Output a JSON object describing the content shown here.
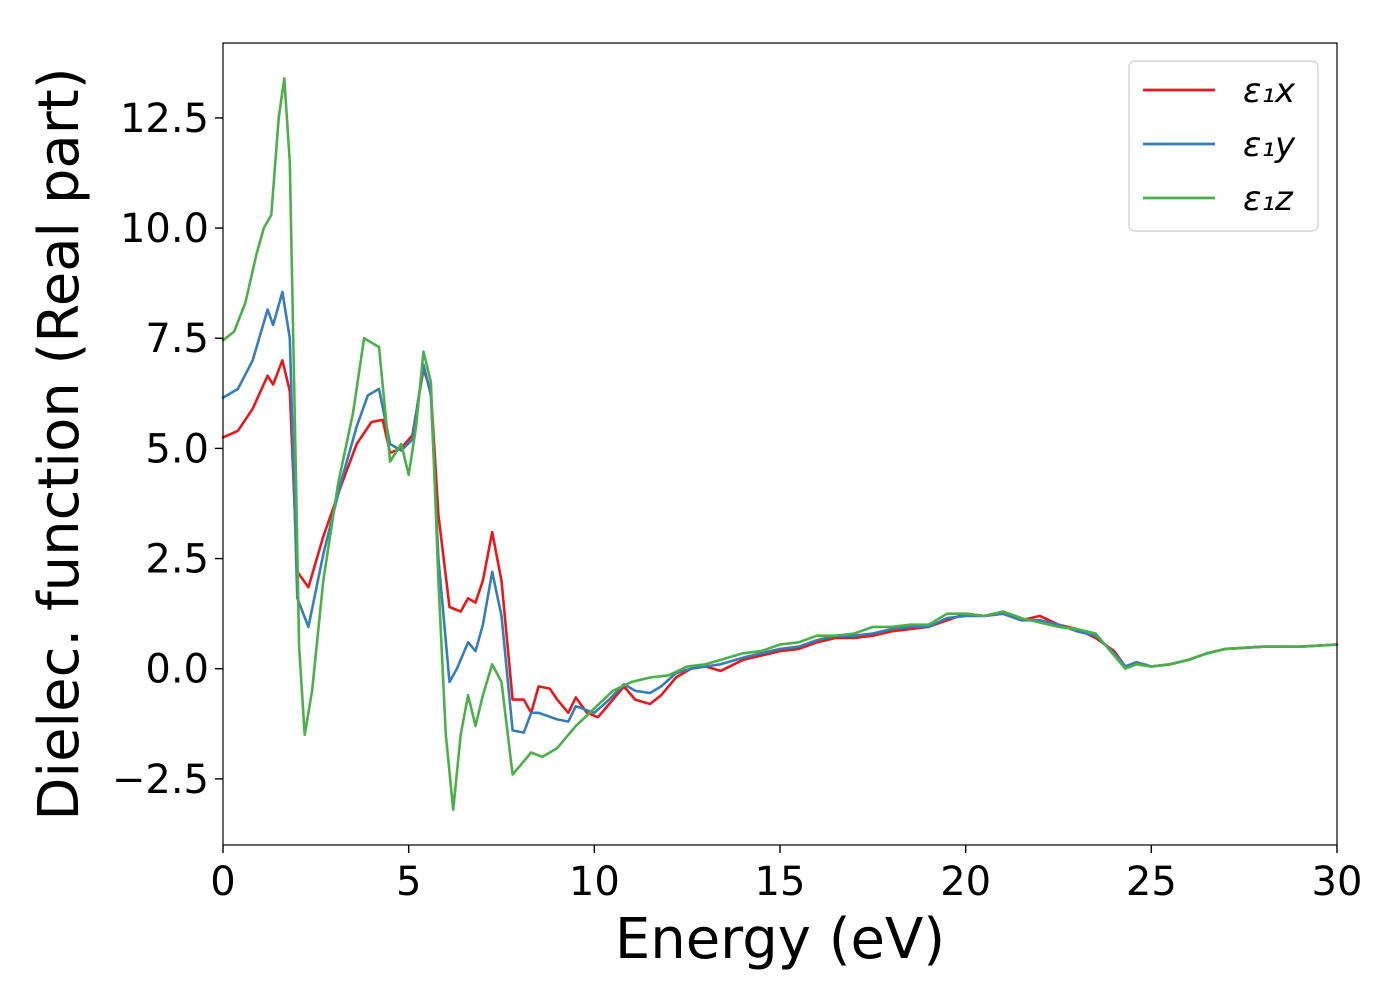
{
  "chart_data": {
    "type": "line",
    "title": "",
    "xlabel": "Energy (eV)",
    "ylabel": "Dielec. function (Real part)",
    "xlim": [
      0,
      30
    ],
    "ylim": [
      -4,
      14.2
    ],
    "xticks": [
      0,
      5,
      10,
      15,
      20,
      25,
      30
    ],
    "xtick_labels": [
      "0",
      "5",
      "10",
      "15",
      "20",
      "25",
      "30"
    ],
    "yticks": [
      -2.5,
      0.0,
      2.5,
      5.0,
      7.5,
      10.0,
      12.5
    ],
    "ytick_labels": [
      "−2.5",
      "0.0",
      "2.5",
      "5.0",
      "7.5",
      "10.0",
      "12.5"
    ],
    "grid": false,
    "legend_position": "top-right",
    "series": [
      {
        "name": "ε₁x",
        "color": "#e41a1c",
        "points": [
          [
            0,
            5.25
          ],
          [
            0.4,
            5.4
          ],
          [
            0.8,
            5.9
          ],
          [
            1.2,
            6.65
          ],
          [
            1.35,
            6.45
          ],
          [
            1.6,
            7.0
          ],
          [
            1.8,
            6.3
          ],
          [
            2.0,
            2.2
          ],
          [
            2.3,
            1.85
          ],
          [
            2.7,
            3.0
          ],
          [
            3.2,
            4.2
          ],
          [
            3.6,
            5.1
          ],
          [
            4.0,
            5.6
          ],
          [
            4.3,
            5.65
          ],
          [
            4.5,
            4.9
          ],
          [
            4.8,
            5.0
          ],
          [
            5.1,
            5.3
          ],
          [
            5.4,
            6.8
          ],
          [
            5.6,
            6.3
          ],
          [
            5.8,
            3.5
          ],
          [
            6.1,
            1.4
          ],
          [
            6.4,
            1.3
          ],
          [
            6.6,
            1.6
          ],
          [
            6.8,
            1.5
          ],
          [
            7.0,
            2.0
          ],
          [
            7.25,
            3.1
          ],
          [
            7.5,
            2.0
          ],
          [
            7.8,
            -0.7
          ],
          [
            8.1,
            -0.7
          ],
          [
            8.3,
            -1.0
          ],
          [
            8.5,
            -0.4
          ],
          [
            8.8,
            -0.45
          ],
          [
            9.0,
            -0.7
          ],
          [
            9.3,
            -1.0
          ],
          [
            9.5,
            -0.65
          ],
          [
            9.8,
            -1.0
          ],
          [
            10.1,
            -1.1
          ],
          [
            10.4,
            -0.8
          ],
          [
            10.8,
            -0.4
          ],
          [
            11.1,
            -0.7
          ],
          [
            11.5,
            -0.8
          ],
          [
            11.8,
            -0.6
          ],
          [
            12.2,
            -0.2
          ],
          [
            12.6,
            0.0
          ],
          [
            13.0,
            0.05
          ],
          [
            13.4,
            -0.05
          ],
          [
            14,
            0.2
          ],
          [
            14.5,
            0.3
          ],
          [
            15,
            0.4
          ],
          [
            15.5,
            0.45
          ],
          [
            16,
            0.6
          ],
          [
            16.5,
            0.7
          ],
          [
            17,
            0.7
          ],
          [
            17.5,
            0.75
          ],
          [
            18,
            0.85
          ],
          [
            18.5,
            0.9
          ],
          [
            19,
            0.95
          ],
          [
            19.5,
            1.1
          ],
          [
            20,
            1.25
          ],
          [
            20.5,
            1.2
          ],
          [
            21,
            1.25
          ],
          [
            21.5,
            1.1
          ],
          [
            22,
            1.2
          ],
          [
            22.5,
            1.0
          ],
          [
            23,
            0.9
          ],
          [
            23.5,
            0.7
          ],
          [
            24,
            0.4
          ],
          [
            24.3,
            0.05
          ],
          [
            24.6,
            0.12
          ],
          [
            25,
            0.05
          ],
          [
            25.5,
            0.1
          ],
          [
            26,
            0.2
          ],
          [
            26.5,
            0.35
          ],
          [
            27,
            0.45
          ],
          [
            28,
            0.5
          ],
          [
            29,
            0.5
          ],
          [
            30,
            0.55
          ]
        ]
      },
      {
        "name": "ε₁y",
        "color": "#377eb8",
        "points": [
          [
            0,
            6.15
          ],
          [
            0.4,
            6.35
          ],
          [
            0.8,
            7.0
          ],
          [
            1.2,
            8.15
          ],
          [
            1.35,
            7.8
          ],
          [
            1.6,
            8.55
          ],
          [
            1.8,
            7.5
          ],
          [
            2.0,
            1.6
          ],
          [
            2.3,
            0.95
          ],
          [
            2.7,
            2.6
          ],
          [
            3.2,
            4.3
          ],
          [
            3.6,
            5.5
          ],
          [
            3.9,
            6.2
          ],
          [
            4.2,
            6.35
          ],
          [
            4.5,
            5.1
          ],
          [
            4.8,
            4.95
          ],
          [
            5.1,
            5.2
          ],
          [
            5.4,
            6.9
          ],
          [
            5.6,
            6.2
          ],
          [
            5.8,
            2.5
          ],
          [
            6.1,
            -0.3
          ],
          [
            6.3,
            0.0
          ],
          [
            6.6,
            0.6
          ],
          [
            6.8,
            0.4
          ],
          [
            7.0,
            1.0
          ],
          [
            7.25,
            2.2
          ],
          [
            7.5,
            1.2
          ],
          [
            7.8,
            -1.4
          ],
          [
            8.1,
            -1.45
          ],
          [
            8.3,
            -1.0
          ],
          [
            8.5,
            -1.0
          ],
          [
            9.0,
            -1.15
          ],
          [
            9.3,
            -1.2
          ],
          [
            9.5,
            -0.85
          ],
          [
            10.0,
            -1.0
          ],
          [
            10.4,
            -0.7
          ],
          [
            10.8,
            -0.35
          ],
          [
            11.1,
            -0.5
          ],
          [
            11.5,
            -0.55
          ],
          [
            11.8,
            -0.4
          ],
          [
            12.2,
            -0.1
          ],
          [
            12.6,
            0.0
          ],
          [
            13.0,
            0.05
          ],
          [
            13.4,
            0.1
          ],
          [
            14,
            0.25
          ],
          [
            14.5,
            0.35
          ],
          [
            15,
            0.45
          ],
          [
            15.5,
            0.5
          ],
          [
            16,
            0.65
          ],
          [
            16.5,
            0.75
          ],
          [
            17,
            0.75
          ],
          [
            17.5,
            0.8
          ],
          [
            18,
            0.9
          ],
          [
            18.5,
            0.95
          ],
          [
            19,
            0.95
          ],
          [
            19.5,
            1.15
          ],
          [
            20,
            1.2
          ],
          [
            20.5,
            1.2
          ],
          [
            21,
            1.25
          ],
          [
            21.5,
            1.1
          ],
          [
            22,
            1.1
          ],
          [
            22.5,
            1.0
          ],
          [
            23,
            0.85
          ],
          [
            23.5,
            0.75
          ],
          [
            24,
            0.35
          ],
          [
            24.3,
            0.05
          ],
          [
            24.6,
            0.15
          ],
          [
            25,
            0.05
          ],
          [
            25.5,
            0.1
          ],
          [
            26,
            0.2
          ],
          [
            26.5,
            0.35
          ],
          [
            27,
            0.45
          ],
          [
            28,
            0.5
          ],
          [
            29,
            0.5
          ],
          [
            30,
            0.55
          ]
        ]
      },
      {
        "name": "ε₁z",
        "color": "#4daf4a",
        "points": [
          [
            0,
            7.45
          ],
          [
            0.3,
            7.65
          ],
          [
            0.6,
            8.3
          ],
          [
            0.9,
            9.4
          ],
          [
            1.1,
            10.0
          ],
          [
            1.3,
            10.3
          ],
          [
            1.5,
            12.5
          ],
          [
            1.65,
            13.4
          ],
          [
            1.8,
            11.5
          ],
          [
            1.95,
            5.0
          ],
          [
            2.05,
            0.5
          ],
          [
            2.2,
            -1.5
          ],
          [
            2.4,
            -0.5
          ],
          [
            2.7,
            2.0
          ],
          [
            3.1,
            4.2
          ],
          [
            3.5,
            5.8
          ],
          [
            3.8,
            7.5
          ],
          [
            4.0,
            7.4
          ],
          [
            4.2,
            7.3
          ],
          [
            4.5,
            4.7
          ],
          [
            4.8,
            5.1
          ],
          [
            5.0,
            4.4
          ],
          [
            5.2,
            5.5
          ],
          [
            5.4,
            7.2
          ],
          [
            5.6,
            6.5
          ],
          [
            5.8,
            2.0
          ],
          [
            6.0,
            -1.5
          ],
          [
            6.2,
            -3.2
          ],
          [
            6.4,
            -1.5
          ],
          [
            6.6,
            -0.6
          ],
          [
            6.8,
            -1.3
          ],
          [
            7.0,
            -0.6
          ],
          [
            7.25,
            0.1
          ],
          [
            7.5,
            -0.3
          ],
          [
            7.8,
            -2.4
          ],
          [
            8.0,
            -2.2
          ],
          [
            8.3,
            -1.9
          ],
          [
            8.6,
            -2.0
          ],
          [
            9.0,
            -1.8
          ],
          [
            9.5,
            -1.3
          ],
          [
            10.0,
            -0.9
          ],
          [
            10.5,
            -0.5
          ],
          [
            11.0,
            -0.3
          ],
          [
            11.5,
            -0.2
          ],
          [
            12.0,
            -0.15
          ],
          [
            12.5,
            0.05
          ],
          [
            13.0,
            0.1
          ],
          [
            13.4,
            0.2
          ],
          [
            14,
            0.35
          ],
          [
            14.5,
            0.4
          ],
          [
            15,
            0.55
          ],
          [
            15.5,
            0.6
          ],
          [
            16,
            0.75
          ],
          [
            16.5,
            0.75
          ],
          [
            17,
            0.8
          ],
          [
            17.5,
            0.95
          ],
          [
            18,
            0.95
          ],
          [
            18.5,
            1.0
          ],
          [
            19,
            1.0
          ],
          [
            19.5,
            1.25
          ],
          [
            20,
            1.25
          ],
          [
            20.5,
            1.2
          ],
          [
            21,
            1.3
          ],
          [
            21.5,
            1.15
          ],
          [
            22,
            1.05
          ],
          [
            22.5,
            0.95
          ],
          [
            23,
            0.9
          ],
          [
            23.5,
            0.8
          ],
          [
            24,
            0.3
          ],
          [
            24.3,
            0.0
          ],
          [
            24.6,
            0.1
          ],
          [
            25,
            0.05
          ],
          [
            25.5,
            0.1
          ],
          [
            26,
            0.2
          ],
          [
            26.5,
            0.35
          ],
          [
            27,
            0.45
          ],
          [
            28,
            0.5
          ],
          [
            29,
            0.5
          ],
          [
            30,
            0.55
          ]
        ]
      }
    ]
  }
}
